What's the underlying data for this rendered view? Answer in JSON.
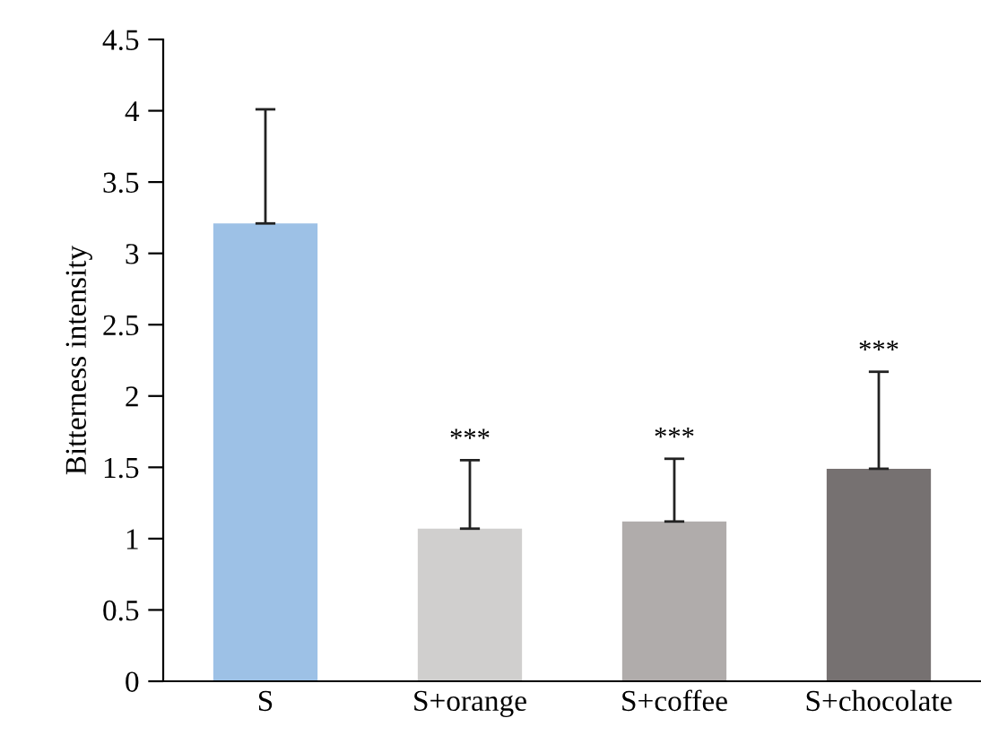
{
  "chart_data": {
    "type": "bar",
    "ylabel": "Bitterness intensity",
    "categories": [
      "S",
      "S+orange",
      "S+coffee",
      "S+chocolate"
    ],
    "values": [
      3.21,
      1.07,
      1.12,
      1.49
    ],
    "errors": [
      [
        3.21,
        4.01
      ],
      [
        1.07,
        1.55
      ],
      [
        1.12,
        1.56
      ],
      [
        1.49,
        2.17
      ]
    ],
    "colors": [
      "#9dc1e6",
      "#d0cfce",
      "#b0acab",
      "#767171"
    ],
    "ylim": [
      0,
      4.5
    ],
    "yticks": [
      0,
      0.5,
      1,
      1.5,
      2,
      2.5,
      3,
      3.5,
      4,
      4.5
    ],
    "annotations": [
      {
        "text": "***",
        "x": "S+orange",
        "y": 1.55
      },
      {
        "text": "***",
        "x": "S+coffee",
        "y": 1.56
      },
      {
        "text": "***",
        "x": "S+chocolate",
        "y": 2.17
      }
    ],
    "grid": false,
    "legend": false
  }
}
